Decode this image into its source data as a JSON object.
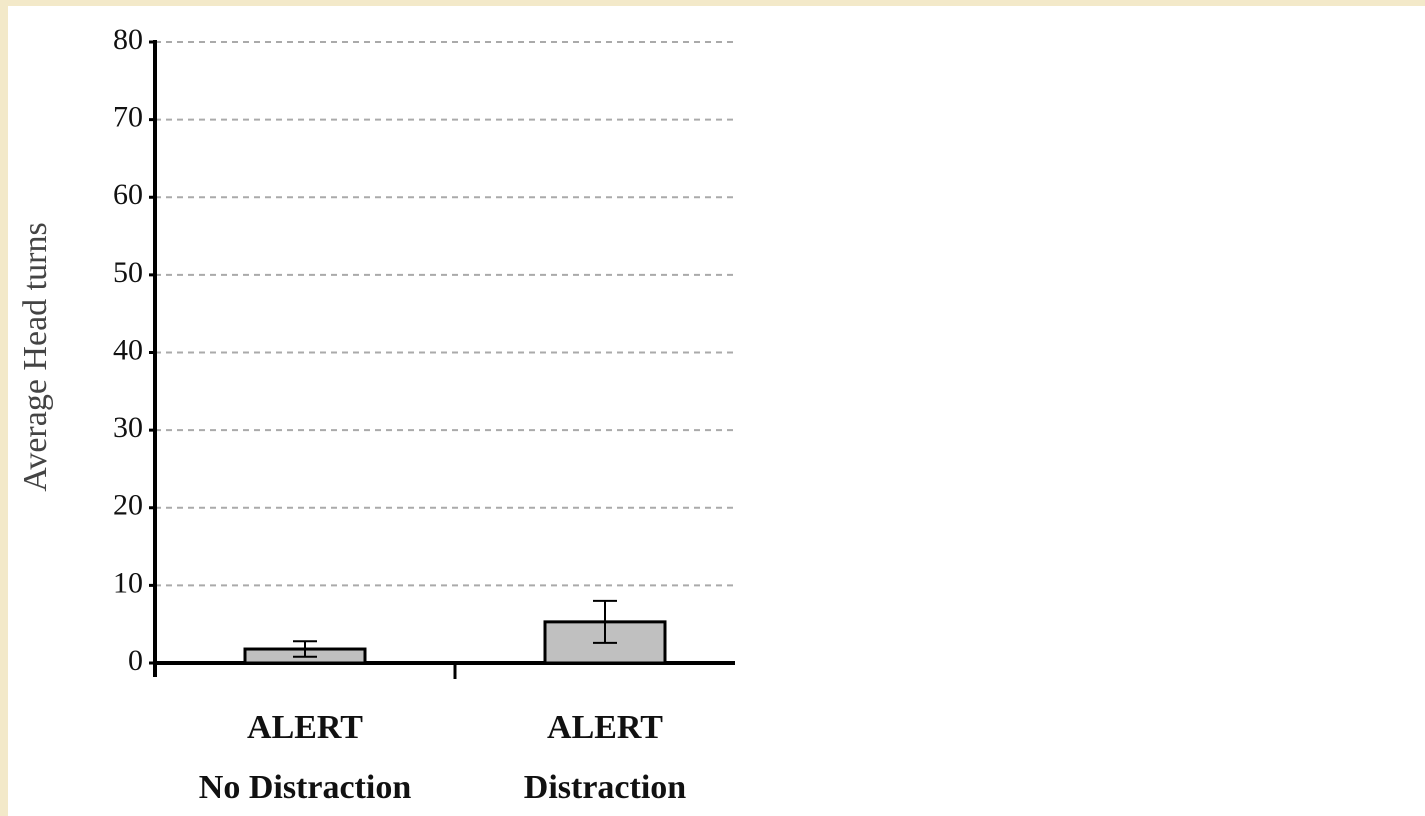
{
  "chart_data": {
    "type": "bar",
    "y_label": "Average Head turns",
    "categories": [
      "ALERT\nNo Distraction",
      "ALERT\nDistraction"
    ],
    "values": [
      1.8,
      5.3
    ],
    "errors": [
      1.0,
      2.7
    ],
    "color": "#c0c0c0",
    "ylim": [
      0,
      80
    ],
    "yticks": [
      0,
      10,
      20,
      30,
      40,
      50,
      60,
      70,
      80
    ],
    "grid": true
  }
}
